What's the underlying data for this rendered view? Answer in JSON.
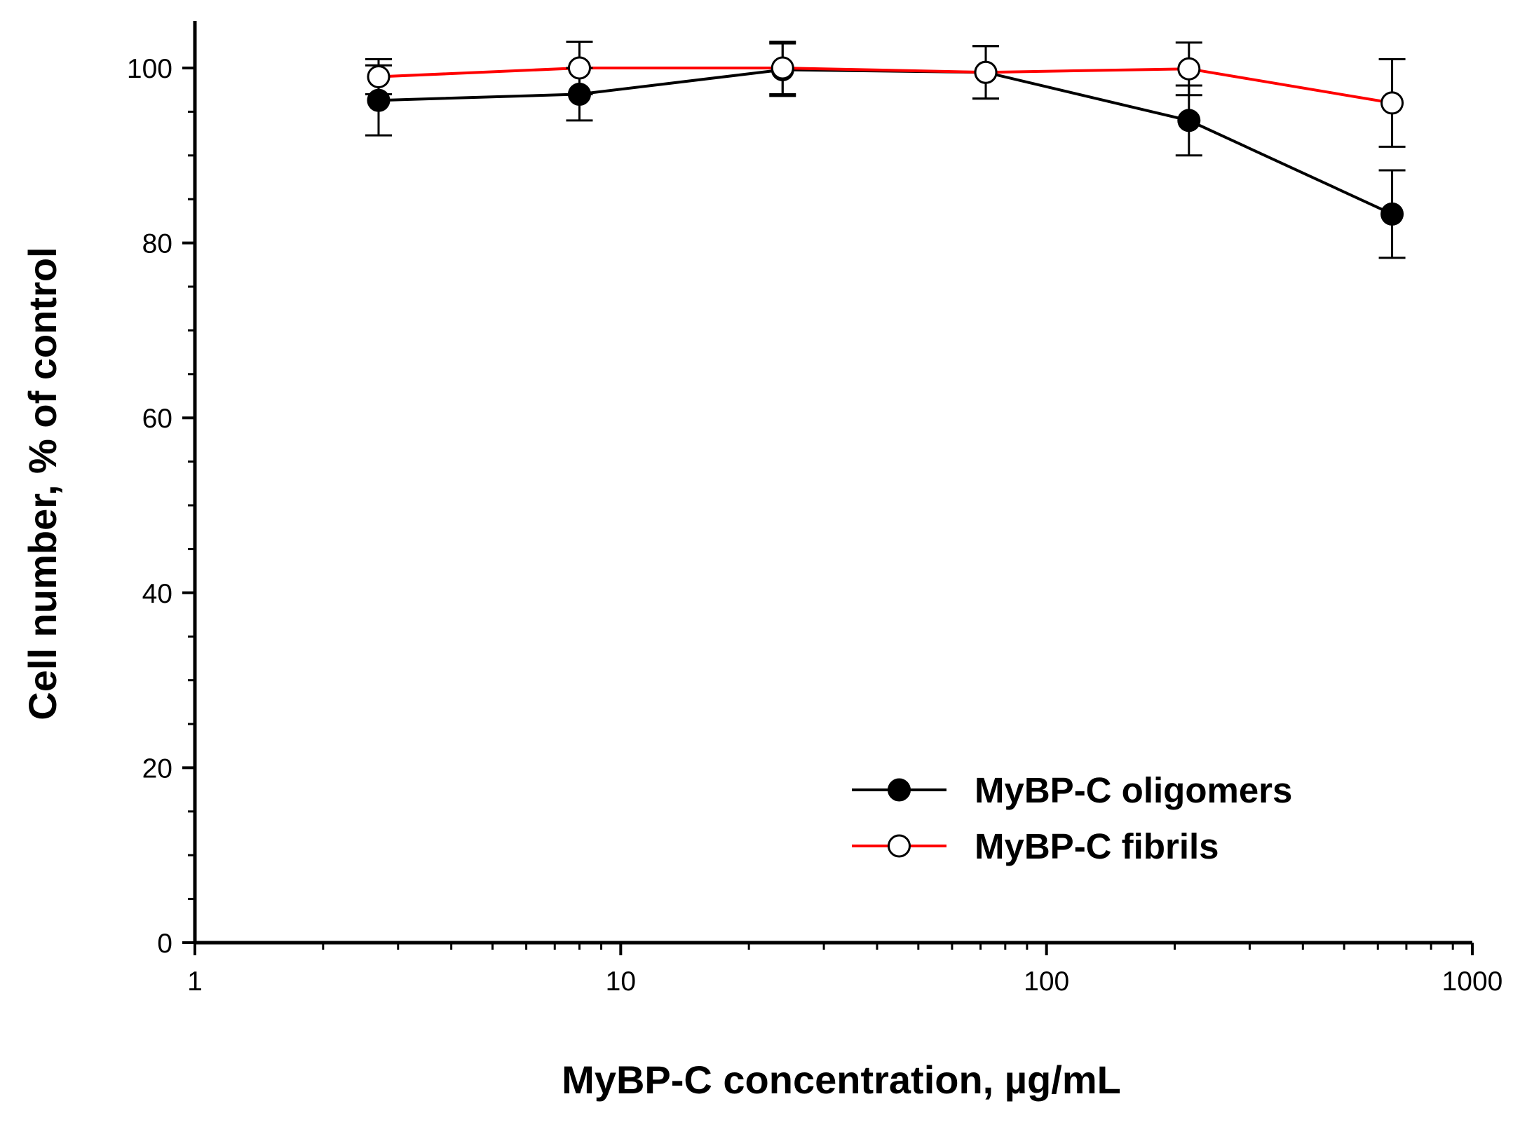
{
  "chart_data": {
    "type": "line",
    "title": "",
    "xlabel": "MyBP-C concentration, µg/mL",
    "ylabel": "Cell number, % of control",
    "x_scale": "log",
    "xlim": [
      1,
      1000
    ],
    "ylim": [
      0,
      105
    ],
    "x_ticks": [
      1,
      10,
      100,
      1000
    ],
    "x_tick_labels": [
      "1",
      "10",
      "100",
      "1000"
    ],
    "y_ticks": [
      0,
      20,
      40,
      60,
      80,
      100
    ],
    "y_tick_labels": [
      "0",
      "20",
      "40",
      "60",
      "80",
      "100"
    ],
    "grid": false,
    "legend_position": "lower-right",
    "series": [
      {
        "name": "MyBP-C oligomers",
        "color": "#000000",
        "marker": "filled-circle",
        "x": [
          2.7,
          8,
          24,
          72,
          216,
          648
        ],
        "y": [
          96.3,
          97,
          99.8,
          99.5,
          94,
          83.3
        ],
        "error": [
          4,
          3,
          3,
          3,
          4,
          5
        ]
      },
      {
        "name": "MyBP-C fibrils",
        "color": "#ff0000",
        "marker": "open-circle",
        "x": [
          2.7,
          8,
          24,
          72,
          216,
          648
        ],
        "y": [
          99,
          100,
          100,
          99.5,
          99.9,
          96
        ],
        "error": [
          2,
          3,
          3,
          3,
          3,
          5
        ]
      }
    ]
  }
}
